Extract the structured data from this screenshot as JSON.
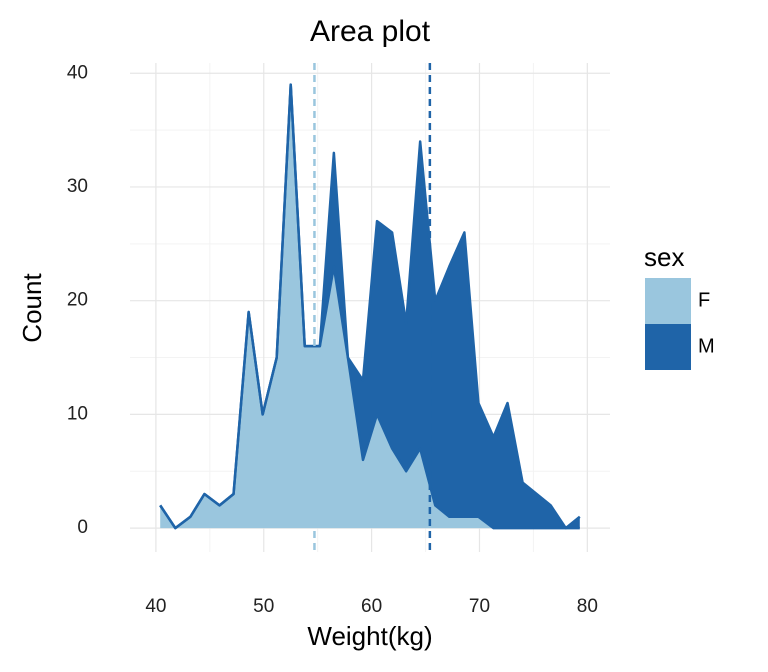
{
  "chart_data": {
    "type": "area",
    "stacked": true,
    "title": "Area plot",
    "x_label": "Weight(kg)",
    "y_label": "Count",
    "legend_title": "sex",
    "x": [
      40.4,
      41.8,
      43.2,
      44.5,
      45.9,
      47.2,
      48.6,
      49.9,
      51.2,
      52.5,
      53.8,
      55.2,
      56.5,
      57.8,
      59.2,
      60.5,
      61.9,
      63.2,
      64.5,
      65.9,
      67.2,
      68.6,
      69.9,
      71.3,
      72.6,
      74.0,
      75.3,
      76.6,
      78.0,
      79.3
    ],
    "series": [
      {
        "name": "F",
        "color": "#9ac6de",
        "mean": 54.7,
        "mean_color": "#9ac6de",
        "values": [
          2,
          0,
          1,
          3,
          2,
          3,
          19,
          10,
          15,
          39,
          16,
          16,
          23,
          15,
          6,
          10,
          7,
          5,
          7,
          2,
          1,
          1,
          1,
          0,
          0,
          0,
          0,
          0,
          0,
          0
        ]
      },
      {
        "name": "M",
        "color": "#1f64a8",
        "mean": 65.4,
        "mean_color": "#1f64a8",
        "values": [
          0,
          0,
          0,
          0,
          0,
          0,
          0,
          0,
          0,
          0,
          0,
          0,
          10,
          0,
          7,
          17,
          19,
          13,
          27,
          18,
          22,
          25,
          10,
          8,
          11,
          4,
          3,
          2,
          0,
          1
        ]
      }
    ],
    "line_color": "#1f64a8",
    "xlim": [
      37.6,
      82.1
    ],
    "ylim": [
      -2.1,
      40.9
    ],
    "xticks": [
      40,
      50,
      60,
      70,
      80
    ],
    "yticks": [
      0,
      10,
      20,
      30,
      40
    ],
    "grid": true,
    "legend_position": "right"
  }
}
